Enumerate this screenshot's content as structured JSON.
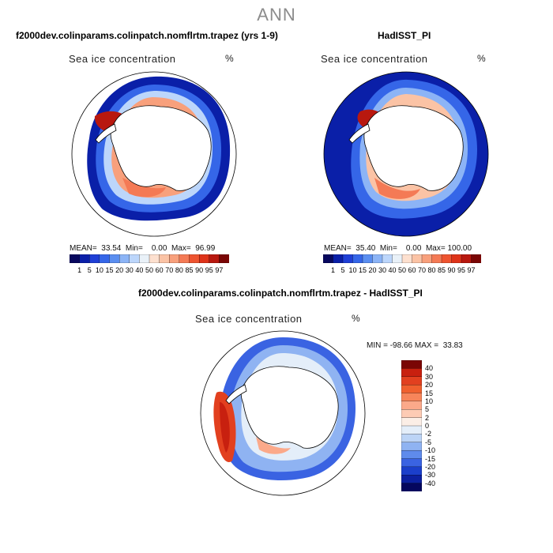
{
  "suptitle": "ANN",
  "panels": [
    {
      "title": "f2000dev.colinparams.colinpatch.nomflrtm.trapez (yrs 1-9)",
      "variable": "Sea ice concentration",
      "units": "%",
      "stats": "MEAN=  33.54  Min=    0.00  Max=  96.99"
    },
    {
      "title": "HadISST_PI",
      "variable": "Sea ice concentration",
      "units": "%",
      "stats": "MEAN=  35.40  Min=    0.00  Max= 100.00"
    },
    {
      "title": "f2000dev.colinparams.colinpatch.nomflrtm.trapez - HadISST_PI",
      "variable": "Sea ice concentration",
      "units": "%",
      "stats": "MIN = -98.66 MAX =  33.83"
    }
  ],
  "abs_colorbar": {
    "labels": [
      "1",
      "5",
      "10",
      "15",
      "20",
      "30",
      "40",
      "50",
      "60",
      "70",
      "80",
      "85",
      "90",
      "95",
      "97"
    ],
    "colors": [
      "#08085e",
      "#0a1fa8",
      "#1f3fd6",
      "#3566e8",
      "#5a8ef0",
      "#8cb4f6",
      "#bcd6fb",
      "#e9f1f8",
      "#fde0cf",
      "#fbc3a5",
      "#f8a07c",
      "#f47a55",
      "#ee5430",
      "#de3319",
      "#b8180f",
      "#7a0605"
    ]
  },
  "diff_colorbar": {
    "labels": [
      "40",
      "30",
      "20",
      "15",
      "10",
      "5",
      "2",
      "0",
      "-2",
      "-5",
      "-10",
      "-15",
      "-20",
      "-30",
      "-40"
    ],
    "colors": [
      "#7a0605",
      "#c8200f",
      "#e2401f",
      "#f0602e",
      "#f7855a",
      "#fba98a",
      "#fdcbb4",
      "#fbeee6",
      "#e4eef9",
      "#bcd4f6",
      "#8fb3f2",
      "#5f8bec",
      "#3a63e2",
      "#1b3fcb",
      "#0c20a0",
      "#05075e"
    ]
  },
  "chart_data": [
    {
      "type": "heatmap",
      "title": "f2000dev.colinparams.colinpatch.nomflrtm.trapez (yrs 1-9)",
      "variable": "Sea ice concentration",
      "units": "%",
      "projection": "south polar stereographic",
      "mean": 33.54,
      "min": 0.0,
      "max": 96.99,
      "contour_levels": [
        1,
        5,
        10,
        15,
        20,
        30,
        40,
        50,
        60,
        70,
        80,
        85,
        90,
        95,
        97
      ]
    },
    {
      "type": "heatmap",
      "title": "HadISST_PI",
      "variable": "Sea ice concentration",
      "units": "%",
      "projection": "south polar stereographic",
      "mean": 35.4,
      "min": 0.0,
      "max": 100.0,
      "contour_levels": [
        1,
        5,
        10,
        15,
        20,
        30,
        40,
        50,
        60,
        70,
        80,
        85,
        90,
        95,
        97
      ]
    },
    {
      "type": "heatmap",
      "title": "f2000dev.colinparams.colinpatch.nomflrtm.trapez - HadISST_PI",
      "variable": "Sea ice concentration",
      "units": "%",
      "projection": "south polar stereographic",
      "min": -98.66,
      "max": 33.83,
      "contour_levels": [
        -40,
        -30,
        -20,
        -15,
        -10,
        -5,
        -2,
        0,
        2,
        5,
        10,
        15,
        20,
        30,
        40
      ]
    }
  ]
}
